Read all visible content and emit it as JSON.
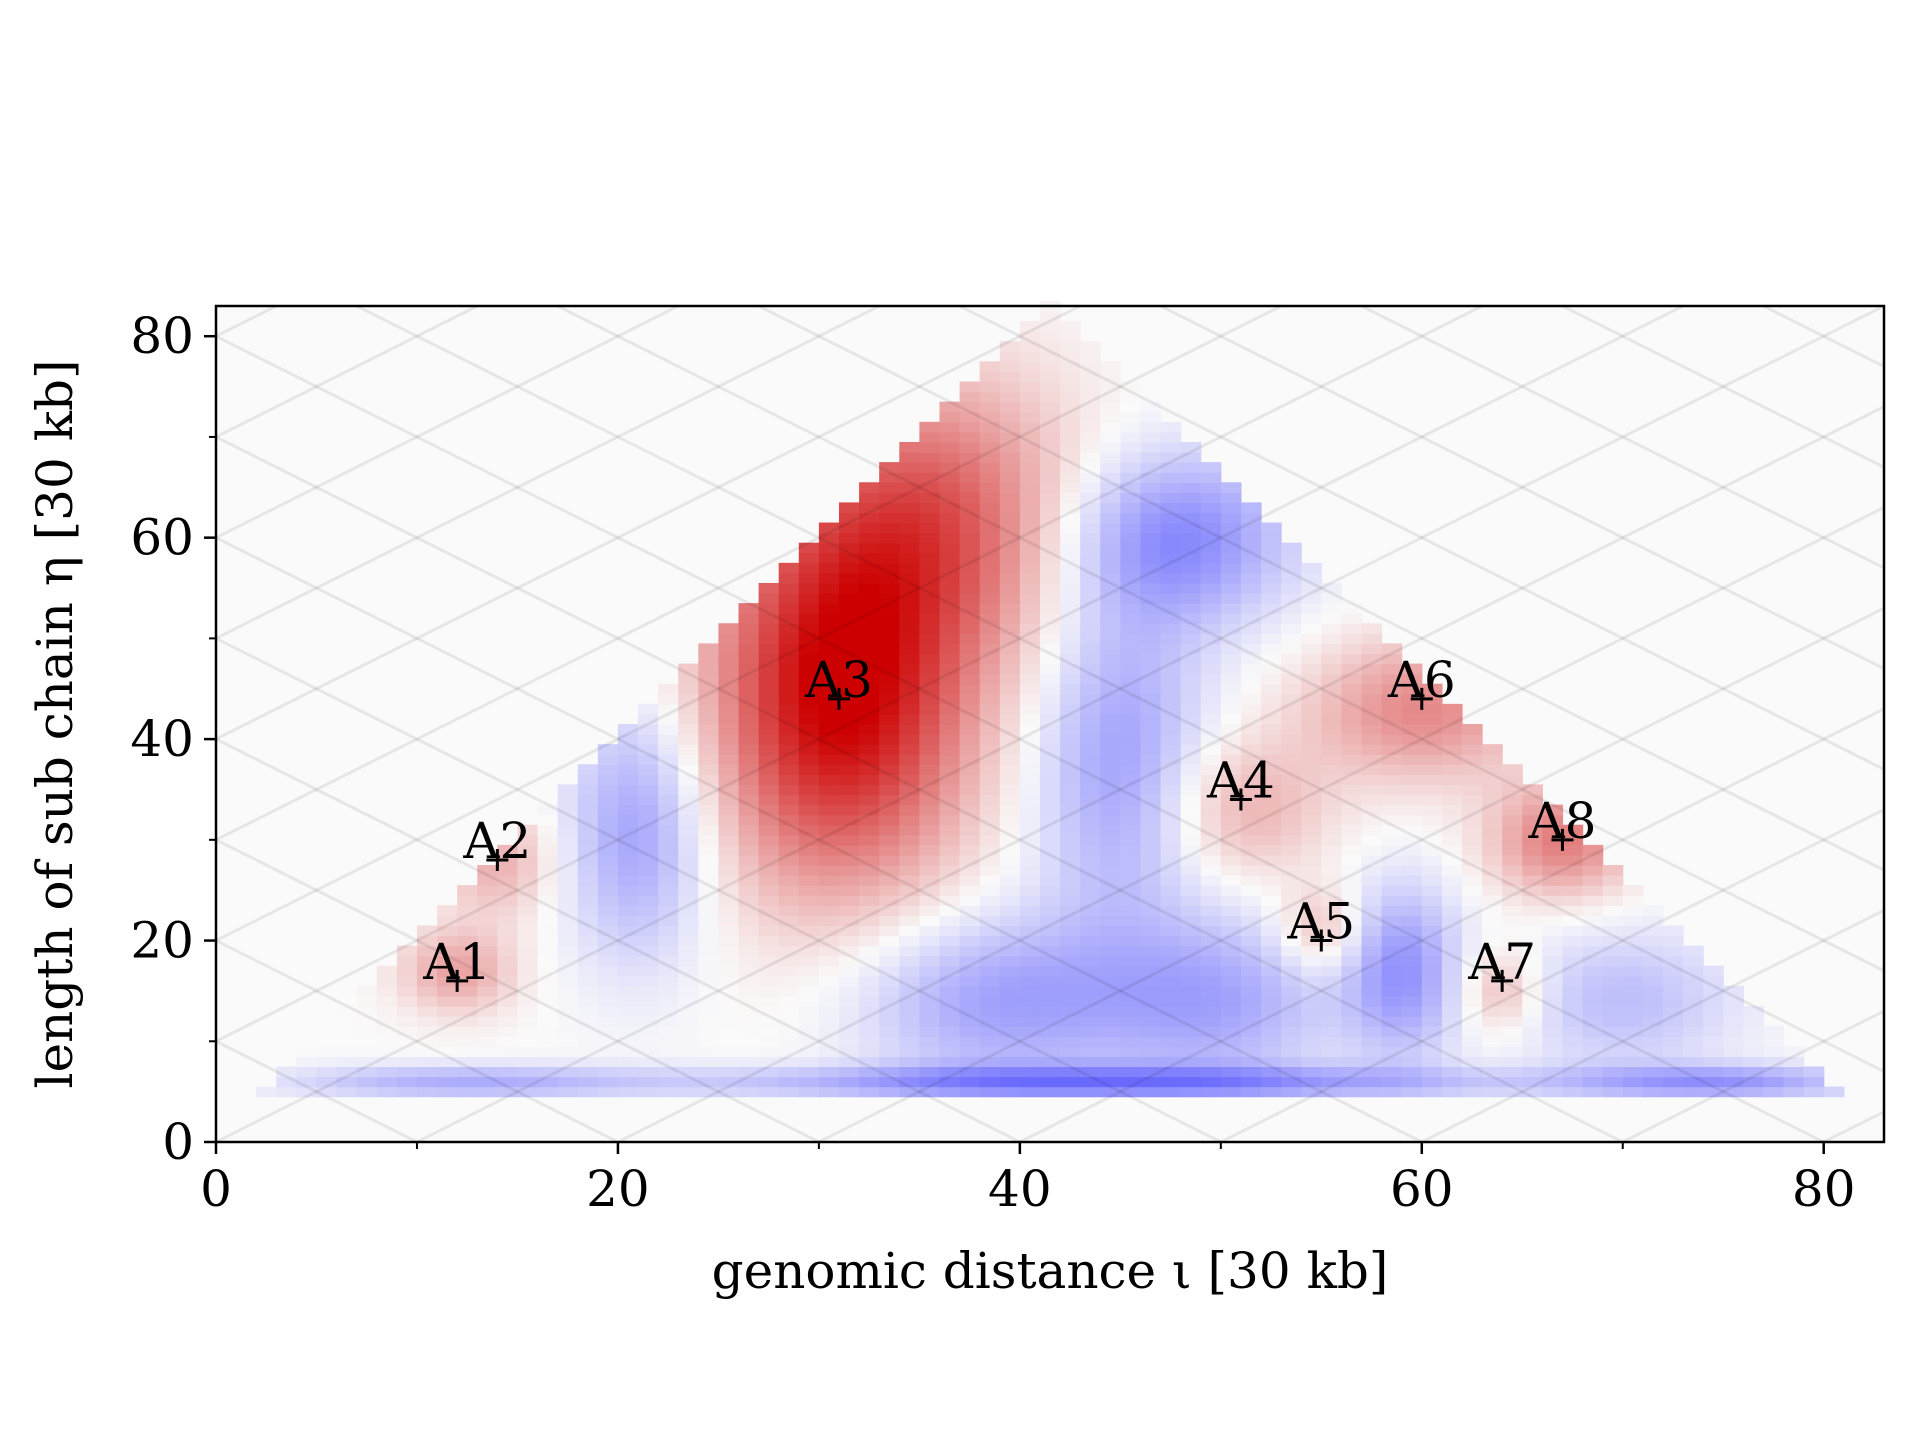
{
  "chart_data": {
    "type": "heatmap",
    "title": "",
    "xlabel": "genomic distance ι [30 kb]",
    "ylabel": "length of sub chain η [30 kb]",
    "xlim": [
      0,
      83
    ],
    "ylim": [
      0,
      83
    ],
    "xticks": [
      0,
      20,
      40,
      60,
      80
    ],
    "yticks": [
      0,
      20,
      40,
      60,
      80
    ],
    "grid": false,
    "legend": "none",
    "colormap": {
      "name": "diverging blue-white-red",
      "negative": "#3333ff",
      "neutral": "#fafafa",
      "positive": "#cc0000",
      "range": [
        -1,
        1
      ]
    },
    "triangle": {
      "apex": [
        41.5,
        83
      ],
      "left_base": [
        2.5,
        4.5
      ],
      "right_base": [
        80.5,
        4.5
      ]
    },
    "hotspots": [
      {
        "center": [
          31,
          44
        ],
        "sigma": [
          4.5,
          13
        ],
        "amp": 1.0
      },
      {
        "center": [
          36,
          62
        ],
        "sigma": [
          5,
          10
        ],
        "amp": 0.55
      },
      {
        "center": [
          12,
          17
        ],
        "sigma": [
          2,
          3
        ],
        "amp": 0.35
      },
      {
        "center": [
          14,
          28
        ],
        "sigma": [
          2,
          4
        ],
        "amp": 0.3
      },
      {
        "center": [
          51,
          33
        ],
        "sigma": [
          3,
          5
        ],
        "amp": 0.3
      },
      {
        "center": [
          55,
          21
        ],
        "sigma": [
          1.5,
          3
        ],
        "amp": 0.3
      },
      {
        "center": [
          60,
          43
        ],
        "sigma": [
          4,
          5
        ],
        "amp": 0.45
      },
      {
        "center": [
          64,
          15
        ],
        "sigma": [
          1.5,
          3
        ],
        "amp": 0.3
      },
      {
        "center": [
          67,
          30
        ],
        "sigma": [
          2.5,
          4
        ],
        "amp": 0.5
      },
      {
        "center": [
          21,
          31
        ],
        "sigma": [
          2.5,
          9
        ],
        "amp": -0.45
      },
      {
        "center": [
          45,
          38
        ],
        "sigma": [
          3,
          12
        ],
        "amp": -0.45
      },
      {
        "center": [
          48,
          60
        ],
        "sigma": [
          4,
          6
        ],
        "amp": -0.55
      },
      {
        "center": [
          39,
          14
        ],
        "sigma": [
          5,
          6
        ],
        "amp": -0.45
      },
      {
        "center": [
          50,
          14
        ],
        "sigma": [
          4,
          6
        ],
        "amp": -0.4
      },
      {
        "center": [
          59,
          17
        ],
        "sigma": [
          2,
          6
        ],
        "amp": -0.5
      },
      {
        "center": [
          70,
          14
        ],
        "sigma": [
          4,
          5
        ],
        "amp": -0.3
      },
      {
        "center": [
          44,
          6
        ],
        "sigma": [
          14,
          1.2
        ],
        "amp": -0.55
      },
      {
        "center": [
          12,
          6
        ],
        "sigma": [
          6,
          1.2
        ],
        "amp": -0.35
      },
      {
        "center": [
          75,
          6
        ],
        "sigma": [
          5,
          1.2
        ],
        "amp": -0.45
      }
    ],
    "annotations": [
      {
        "label": "A1",
        "x": 12,
        "y": 16
      },
      {
        "label": "A2",
        "x": 14,
        "y": 28
      },
      {
        "label": "A3",
        "x": 31,
        "y": 44
      },
      {
        "label": "A4",
        "x": 51,
        "y": 34
      },
      {
        "label": "A5",
        "x": 55,
        "y": 20
      },
      {
        "label": "A6",
        "x": 60,
        "y": 44
      },
      {
        "label": "A7",
        "x": 64,
        "y": 16
      },
      {
        "label": "A8",
        "x": 67,
        "y": 30
      }
    ]
  }
}
